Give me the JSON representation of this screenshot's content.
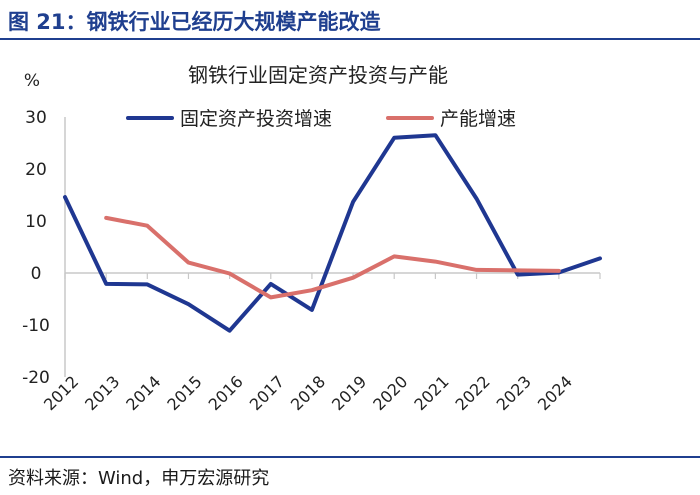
{
  "figure": {
    "title": "图 21：钢铁行业已经历大规模产能改造",
    "source": "资料来源：Wind，申万宏源研究",
    "accent_color": "#1f3f8f"
  },
  "chart_data": {
    "type": "line",
    "title": "钢铁行业固定资产投资与产能",
    "ylabel": "%",
    "xlabel": "",
    "ylim": [
      -20,
      30
    ],
    "yticks": [
      -20,
      -10,
      0,
      10,
      20,
      30
    ],
    "categories": [
      "2012",
      "2013",
      "2014",
      "2015",
      "2016",
      "2017",
      "2018",
      "2019",
      "2020",
      "2021",
      "2022",
      "2023",
      "2024"
    ],
    "x_values": [
      2012,
      2013,
      2014,
      2015,
      2016,
      2017,
      2018,
      2019,
      2020,
      2021,
      2022,
      2023,
      2024,
      2025
    ],
    "grid": false,
    "legend_position": "top",
    "series": [
      {
        "name": "固定资产投资增速",
        "color": "#1f3791",
        "values": [
          14.6,
          -2.1,
          -2.2,
          -6.0,
          -11.1,
          -2.1,
          -7.1,
          13.7,
          26.0,
          26.5,
          14.3,
          -0.3,
          0.1,
          2.8
        ]
      },
      {
        "name": "产能增速",
        "color": "#d9706b",
        "values": [
          null,
          10.6,
          9.1,
          2.0,
          -0.1,
          -4.7,
          -3.3,
          -0.9,
          3.2,
          2.2,
          0.6,
          0.5,
          0.4,
          null
        ]
      }
    ]
  }
}
